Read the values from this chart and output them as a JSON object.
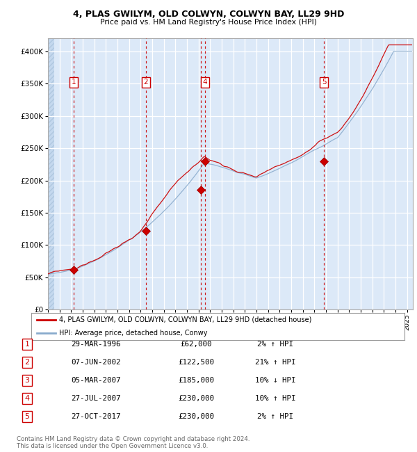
{
  "title1": "4, PLAS GWILYM, OLD COLWYN, COLWYN BAY, LL29 9HD",
  "title2": "Price paid vs. HM Land Registry's House Price Index (HPI)",
  "plot_bg_color": "#dce9f8",
  "grid_color": "#ffffff",
  "red_line_color": "#cc0000",
  "blue_line_color": "#88aacc",
  "marker_color": "#cc0000",
  "ylim": [
    0,
    420000
  ],
  "yticks": [
    0,
    50000,
    100000,
    150000,
    200000,
    250000,
    300000,
    350000,
    400000
  ],
  "transactions": [
    {
      "num": 1,
      "date": "29-MAR-1996",
      "price": 62000,
      "pct": "2%",
      "dir": "↑",
      "year_x": 1996.24
    },
    {
      "num": 2,
      "date": "07-JUN-2002",
      "price": 122500,
      "pct": "21%",
      "dir": "↑",
      "year_x": 2002.44
    },
    {
      "num": 3,
      "date": "05-MAR-2007",
      "price": 185000,
      "pct": "10%",
      "dir": "↓",
      "year_x": 2007.18
    },
    {
      "num": 4,
      "date": "27-JUL-2007",
      "price": 230000,
      "pct": "10%",
      "dir": "↑",
      "year_x": 2007.57
    },
    {
      "num": 5,
      "date": "27-OCT-2017",
      "price": 230000,
      "pct": "2%",
      "dir": "↑",
      "year_x": 2017.83
    }
  ],
  "legend_line1": "4, PLAS GWILYM, OLD COLWYN, COLWYN BAY, LL29 9HD (detached house)",
  "legend_line2": "HPI: Average price, detached house, Conwy",
  "table_rows": [
    [
      "1",
      "29-MAR-1996",
      "£62,000",
      "2% ↑ HPI"
    ],
    [
      "2",
      "07-JUN-2002",
      "£122,500",
      "21% ↑ HPI"
    ],
    [
      "3",
      "05-MAR-2007",
      "£185,000",
      "10% ↓ HPI"
    ],
    [
      "4",
      "27-JUL-2007",
      "£230,000",
      "10% ↑ HPI"
    ],
    [
      "5",
      "27-OCT-2017",
      "£230,000",
      "2% ↑ HPI"
    ]
  ],
  "footer1": "Contains HM Land Registry data © Crown copyright and database right 2024.",
  "footer2": "This data is licensed under the Open Government Licence v3.0.",
  "xmin": 1994.0,
  "xmax": 2025.5
}
